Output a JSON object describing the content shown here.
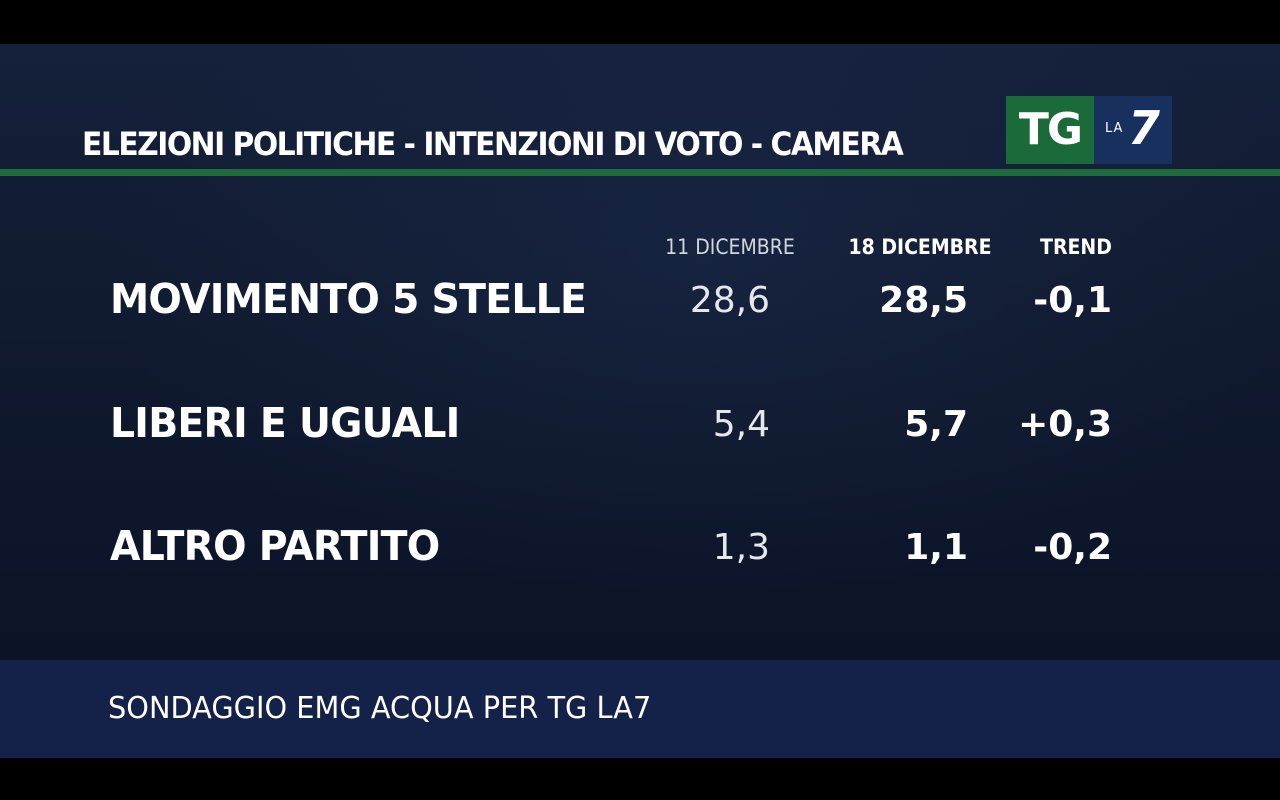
{
  "chart_data": {
    "type": "table",
    "title": "ELEZIONI POLITICHE - INTENZIONI DI VOTO - CAMERA",
    "columns": [
      "11 DICEMBRE",
      "18 DICEMBRE",
      "TREND"
    ],
    "rows": [
      {
        "party": "MOVIMENTO 5 STELLE",
        "values": [
          "28,6",
          "28,5",
          "-0,1"
        ]
      },
      {
        "party": "LIBERI E UGUALI",
        "values": [
          "5,4",
          "5,7",
          "+0,3"
        ]
      },
      {
        "party": "ALTRO PARTITO",
        "values": [
          "1,3",
          "1,1",
          "-0,2"
        ]
      }
    ],
    "source": "SONDAGGIO EMG ACQUA PER TG LA7"
  },
  "logo": {
    "tg": "TG",
    "la": "LA",
    "seven": "7"
  },
  "colors": {
    "panel_background": "#101a30",
    "title_rule": "#1e6b3c",
    "logo_green": "#1b6a3a",
    "logo_blue": "#17305e",
    "footer_band": "#142149",
    "text": "#ffffff"
  }
}
